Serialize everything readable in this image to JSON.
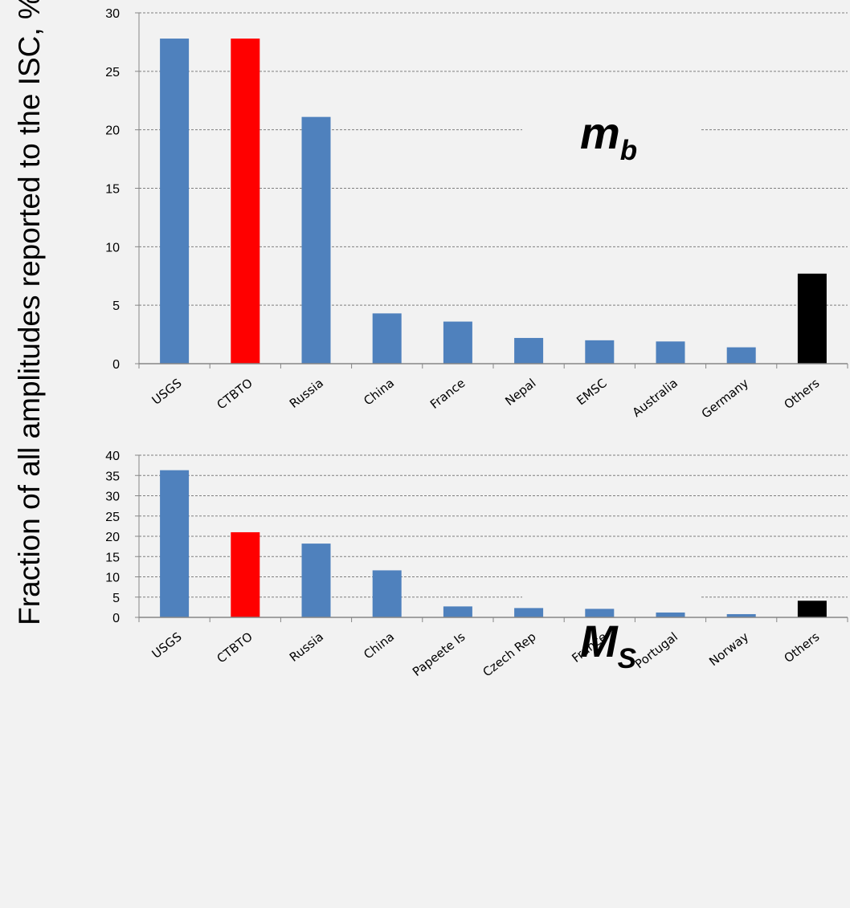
{
  "chart_data": [
    {
      "type": "bar",
      "title": "m",
      "title_subscript": "b",
      "ylabel": "Fraction of all amplitudes reported to the ISC, %",
      "ylim": [
        0,
        30
      ],
      "yticks": [
        "0",
        "5",
        "10",
        "15",
        "20",
        "25",
        "30"
      ],
      "categories": [
        "USGS",
        "CTBTO",
        "Russia",
        "China",
        "France",
        "Nepal",
        "EMSC",
        "Australia",
        "Germany",
        "Others"
      ],
      "values": [
        27.8,
        27.8,
        21.1,
        4.3,
        3.6,
        2.2,
        2.0,
        1.9,
        1.4,
        7.7
      ],
      "colors": [
        "#4f81bd",
        "#ff0000",
        "#4f81bd",
        "#4f81bd",
        "#4f81bd",
        "#4f81bd",
        "#4f81bd",
        "#4f81bd",
        "#4f81bd",
        "#000000"
      ],
      "grid": true
    },
    {
      "type": "bar",
      "title": "M",
      "title_subscript": "S",
      "ylabel": "Fraction of all amplitudes reported to the ISC, %",
      "ylim": [
        0,
        40
      ],
      "yticks": [
        "0",
        "5",
        "10",
        "15",
        "20",
        "25",
        "30",
        "35",
        "40"
      ],
      "categories": [
        "USGS",
        "CTBTO",
        "Russia",
        "China",
        "Papeete Is",
        "Czech Rep",
        "France",
        "Portugal",
        "Norway",
        "Others"
      ],
      "values": [
        36.3,
        21.0,
        18.2,
        11.6,
        2.7,
        2.3,
        2.1,
        1.2,
        0.8,
        4.1
      ],
      "colors": [
        "#4f81bd",
        "#ff0000",
        "#4f81bd",
        "#4f81bd",
        "#4f81bd",
        "#4f81bd",
        "#4f81bd",
        "#4f81bd",
        "#4f81bd",
        "#000000"
      ],
      "grid": true
    }
  ]
}
